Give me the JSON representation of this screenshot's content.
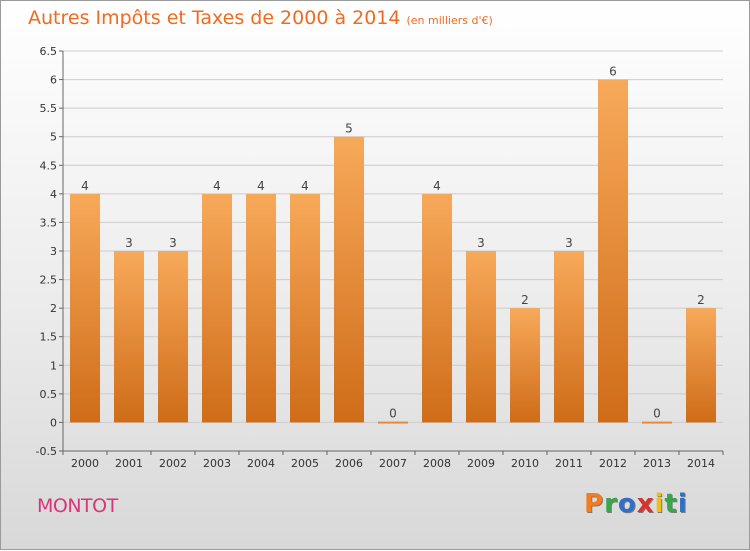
{
  "header": {
    "title": "Autres Impôts et Taxes de 2000 à 2014",
    "unit": "(en milliers d'€)"
  },
  "footer": {
    "commune": "MONTOT",
    "logo": "Proxiti",
    "logo_colors": [
      "#f47c20",
      "#3aa64a",
      "#2f6fc7",
      "#d8332b",
      "#e8c21a",
      "#3aa64a",
      "#2f6fc7"
    ]
  },
  "colors": {
    "title": "#f06a1f",
    "commune": "#d9357a",
    "bar_light": "#f7a95a",
    "bar_dark": "#cf6c18",
    "grid": "#cccccc"
  },
  "chart_data": {
    "type": "bar",
    "categories": [
      "2000",
      "2001",
      "2002",
      "2003",
      "2004",
      "2005",
      "2006",
      "2007",
      "2008",
      "2009",
      "2010",
      "2011",
      "2012",
      "2013",
      "2014"
    ],
    "values": [
      4,
      3,
      3,
      4,
      4,
      4,
      5,
      0,
      4,
      3,
      2,
      3,
      6,
      0,
      2
    ],
    "data_labels": [
      "4",
      "3",
      "3",
      "4",
      "4",
      "4",
      "5",
      "0",
      "4",
      "3",
      "2",
      "3",
      "6",
      "0",
      "2"
    ],
    "ylim": [
      -0.5,
      6.5
    ],
    "yticks": [
      "-0.5",
      "0",
      "0.5",
      "1",
      "1.5",
      "2",
      "2.5",
      "3",
      "3.5",
      "4",
      "4.5",
      "5",
      "5.5",
      "6",
      "6.5"
    ],
    "grid": true,
    "title": "Autres Impôts et Taxes de 2000 à 2014",
    "xlabel": "",
    "ylabel": ""
  }
}
